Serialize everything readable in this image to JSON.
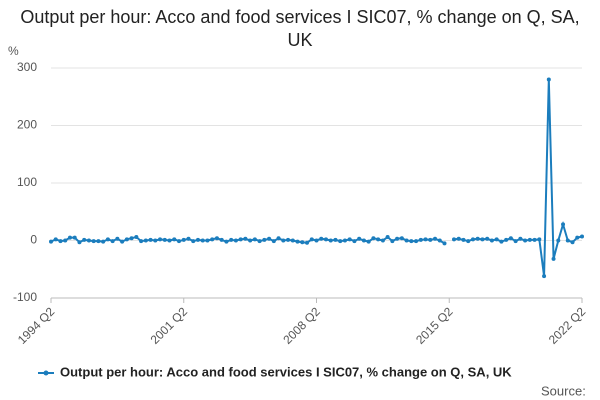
{
  "chart_data": {
    "type": "line",
    "title": "Output per hour: Acco and food services I SIC07, % change on Q, SA, UK",
    "y_label": "%",
    "source": "Source:",
    "categories": [
      "1994 Q2",
      null,
      null,
      null,
      null,
      null,
      null,
      null,
      null,
      null,
      null,
      null,
      null,
      null,
      null,
      null,
      null,
      null,
      null,
      null,
      null,
      null,
      null,
      null,
      null,
      null,
      null,
      null,
      "2001 Q2",
      null,
      null,
      null,
      null,
      null,
      null,
      null,
      null,
      null,
      null,
      null,
      null,
      null,
      null,
      null,
      null,
      null,
      null,
      null,
      null,
      null,
      null,
      null,
      null,
      null,
      null,
      null,
      "2008 Q2",
      null,
      null,
      null,
      null,
      null,
      null,
      null,
      null,
      null,
      null,
      null,
      null,
      null,
      null,
      null,
      null,
      null,
      null,
      null,
      null,
      null,
      null,
      null,
      null,
      null,
      null,
      null,
      "2015 Q2",
      null,
      null,
      null,
      null,
      null,
      null,
      null,
      null,
      null,
      null,
      null,
      null,
      null,
      null,
      null,
      null,
      null,
      null,
      null,
      null,
      null,
      null,
      null,
      null,
      null,
      null,
      null,
      "2022 Q2"
    ],
    "series": [
      {
        "name": "Output per hour: Acco and food services I SIC07, % change on Q, SA, UK",
        "color": "#1b7dbd",
        "values": [
          -2,
          2,
          -1,
          0,
          5,
          5,
          -3,
          1,
          0,
          -1,
          -1,
          -2,
          2,
          -1,
          3,
          -2,
          2,
          4,
          6,
          -1,
          0,
          1,
          0,
          2,
          1,
          0,
          2,
          -1,
          1,
          3,
          -1,
          1,
          0,
          0,
          2,
          4,
          1,
          -2,
          1,
          0,
          2,
          3,
          0,
          2,
          -1,
          1,
          3,
          -1,
          4,
          0,
          1,
          0,
          -2,
          -3,
          -4,
          2,
          0,
          3,
          2,
          0,
          1,
          -1,
          0,
          2,
          -1,
          3,
          0,
          -2,
          4,
          2,
          0,
          6,
          -1,
          3,
          4,
          0,
          -1,
          -1,
          1,
          2,
          1,
          3,
          0,
          -5,
          null,
          2,
          3,
          1,
          -1,
          2,
          3,
          2,
          3,
          0,
          2,
          -2,
          1,
          4,
          -1,
          3,
          0,
          1,
          1,
          2,
          -62,
          280,
          -32,
          0,
          28,
          0,
          -3,
          5,
          7
        ]
      }
    ],
    "ylim": [
      -100,
      300
    ],
    "yticks": [
      -100,
      0,
      100,
      200,
      300
    ],
    "grid": true,
    "legend": "bottom"
  }
}
